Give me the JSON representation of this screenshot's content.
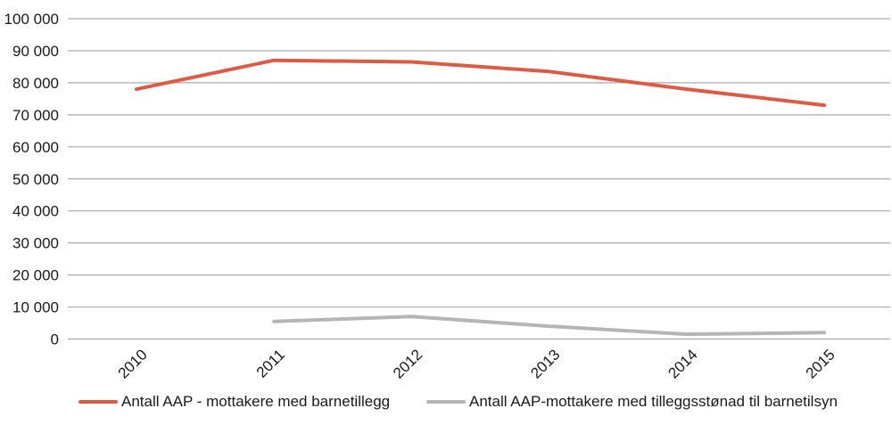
{
  "chart_data": {
    "type": "line",
    "title": "",
    "xlabel": "",
    "ylabel": "",
    "x_labels": [
      "2010",
      "2011",
      "2012",
      "2013",
      "2014",
      "2015"
    ],
    "series": [
      {
        "name": "Antall AAP - mottakere med barnetillegg",
        "color": "#DE5B43",
        "values": [
          78000,
          87000,
          86500,
          83500,
          78000,
          73000
        ]
      },
      {
        "name": "Antall AAP-mottakere med tilleggsstønad til barnetilsyn",
        "color": "#B5B5B5",
        "values": [
          null,
          5500,
          7000,
          4000,
          1500,
          2000
        ]
      }
    ],
    "ylim": [
      0,
      100000
    ],
    "ytick_step": 10000,
    "y_tick_labels": [
      "0",
      "10 000",
      "20 000",
      "30 000",
      "40 000",
      "50 000",
      "60 000",
      "70 000",
      "80 000",
      "90 000",
      "100 000"
    ],
    "grid": "horizontal",
    "gridline_color": "#AAAAAA",
    "text_color": "#1a1a1a",
    "legend_position": "bottom"
  }
}
